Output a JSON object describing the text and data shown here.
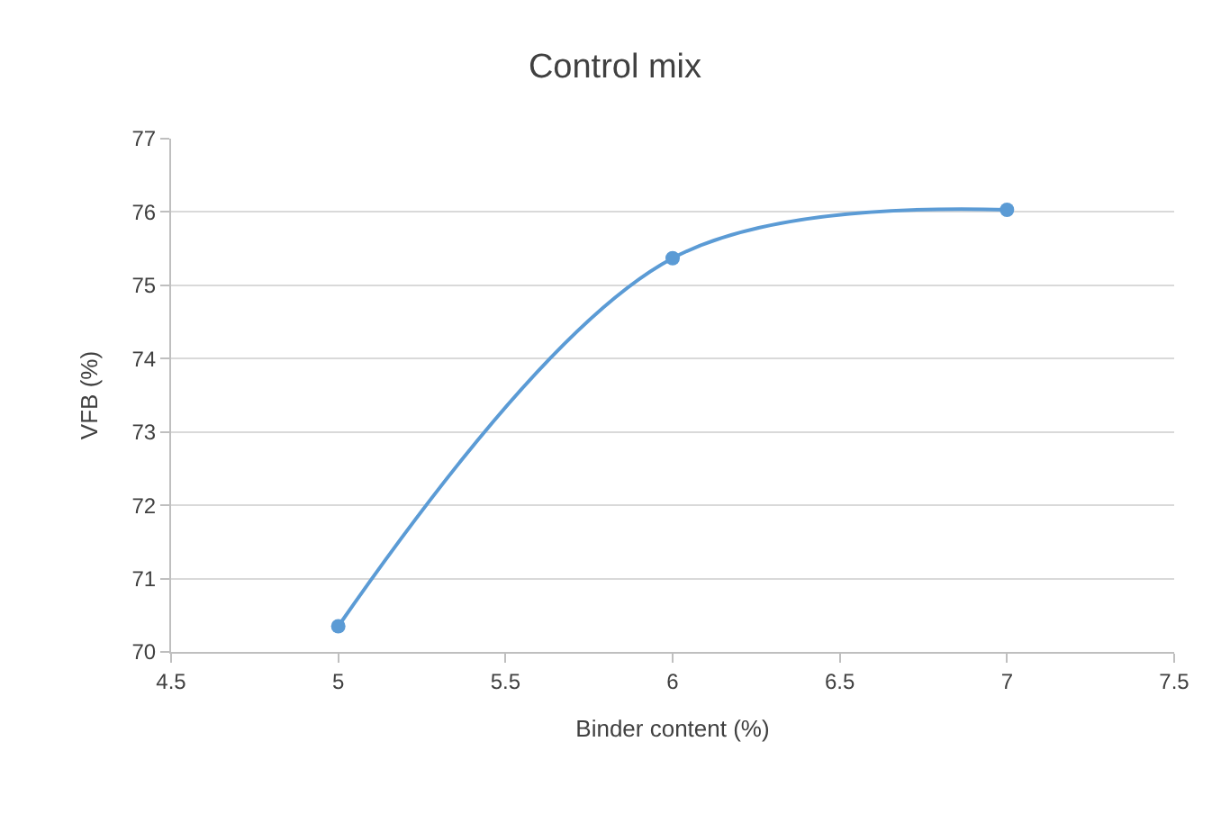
{
  "chart_data": {
    "type": "line",
    "title": "Control mix",
    "xlabel": "Binder content (%)",
    "ylabel": "VFB (%)",
    "x": [
      5,
      6,
      7
    ],
    "series": [
      {
        "color": "#5b9bd5",
        "values": [
          70.35,
          75.37,
          76.03
        ]
      }
    ],
    "xlim": [
      4.5,
      7.5
    ],
    "xticks": [
      4.5,
      5,
      5.5,
      6,
      6.5,
      7,
      7.5
    ],
    "ylim": [
      70,
      77
    ],
    "yticks": [
      70,
      71,
      72,
      73,
      74,
      75,
      76,
      77
    ],
    "grid": "y",
    "marker": "circle",
    "line_style": "solid"
  }
}
